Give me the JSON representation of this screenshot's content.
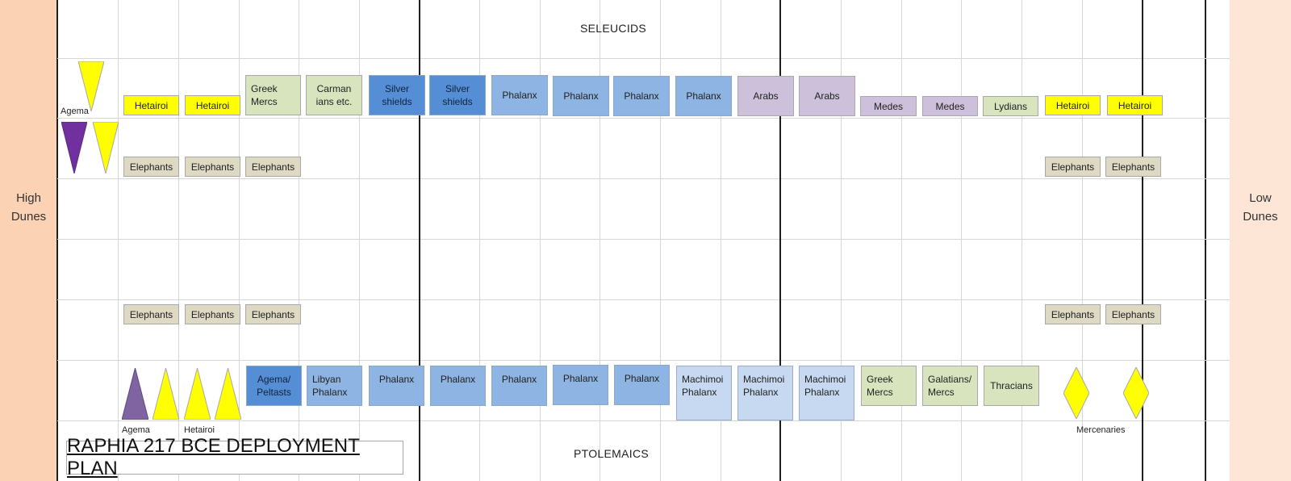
{
  "flanks": {
    "left": "High\nDunes",
    "right": "Low\nDunes"
  },
  "headings": {
    "top": "SELEUCIDS",
    "bottom": "PTOLEMAICS"
  },
  "title": "RAPHIA 217 BCE DEPLOYMENT PLAN",
  "labels": {
    "seleucid_agema": "Agema",
    "ptolemaic_agema": "Agema",
    "ptolemaic_hetairoi": "Hetairoi",
    "mercenaries": "Mercenaries"
  },
  "seleucid_line": [
    "Hetairoi",
    "Hetairoi",
    "Greek\nMercs",
    "Carman\nians etc.",
    "Silver\nshields",
    "Silver\nshields",
    "Phalanx",
    "Phalanx",
    "Phalanx",
    "Phalanx",
    "Arabs",
    "Arabs",
    "Medes",
    "Medes",
    "Lydians",
    "Hetairoi",
    "Hetairoi"
  ],
  "seleucid_elephants": [
    "Elephants",
    "Elephants",
    "Elephants",
    "Elephants",
    "Elephants"
  ],
  "ptolemaic_elephants": [
    "Elephants",
    "Elephants",
    "Elephants",
    "Elephants",
    "Elephants"
  ],
  "ptolemaic_line": [
    "Agema/\nPeltasts",
    "Libyan\nPhalanx",
    "Phalanx",
    "Phalanx",
    "Phalanx",
    "Phalanx",
    "Phalanx",
    "Machimoi\nPhalanx",
    "Machimoi\nPhalanx",
    "Machimoi\nPhalanx",
    "Greek\nMercs",
    "Galatians/\nMercs",
    "Thracians"
  ],
  "colors": {
    "high_dunes": "#fcd2b4",
    "low_dunes": "#fde6d6",
    "hetairoi": "#ffff00",
    "elephants": "#ddd9c3",
    "mercs": "#d7e4bd",
    "silver_shields": "#558ed5",
    "phalanx": "#8eb4e3",
    "machimoi": "#c6d9f1",
    "arabs_medes": "#ccc0da",
    "agema": "#7030a0"
  }
}
